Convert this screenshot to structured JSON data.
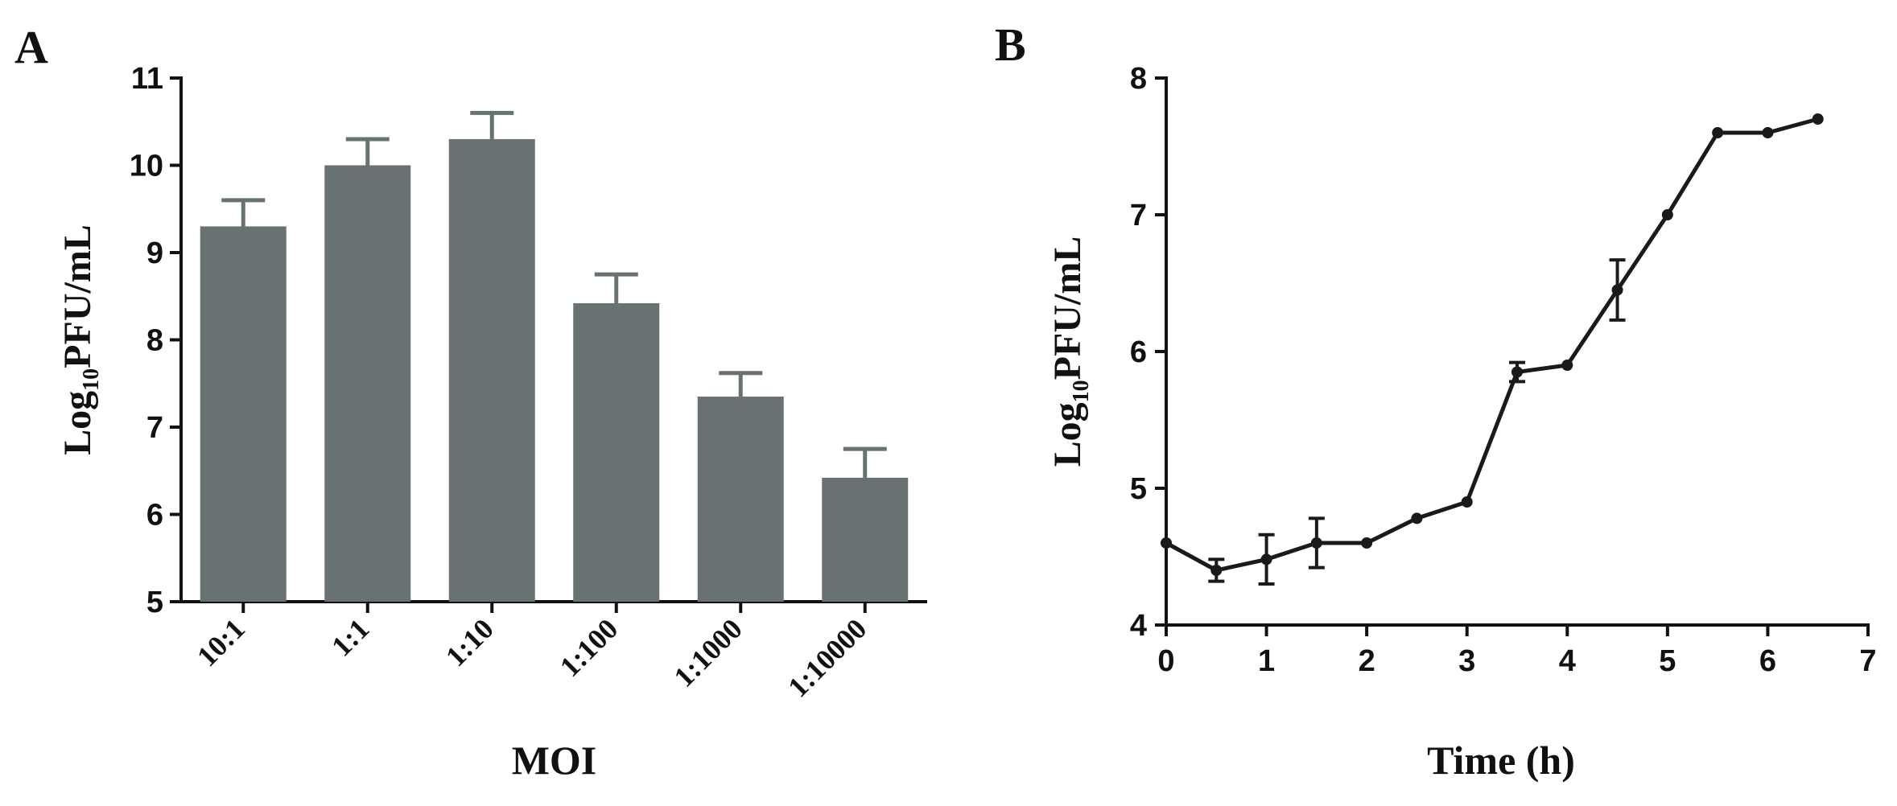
{
  "figure": {
    "panel_a_letter": "A",
    "panel_b_letter": "B"
  },
  "chart_data": [
    {
      "type": "bar",
      "panel": "A",
      "xlabel": "MOI",
      "ylabel_main": "Log",
      "ylabel_sub": "10",
      "ylabel_rest": "PFU/mL",
      "ylim": [
        5,
        11
      ],
      "yticks": [
        5,
        6,
        7,
        8,
        9,
        10,
        11
      ],
      "categories": [
        "10:1",
        "1:1",
        "1:10",
        "1:100",
        "1:1000",
        "1:10000"
      ],
      "values": [
        9.3,
        10.0,
        10.3,
        8.42,
        7.35,
        6.42
      ],
      "errors": [
        0.3,
        0.3,
        0.3,
        0.33,
        0.27,
        0.33
      ],
      "bar_color": "#687273",
      "grid": false
    },
    {
      "type": "line",
      "panel": "B",
      "xlabel": "Time (h)",
      "ylabel_main": "Log",
      "ylabel_sub": "10",
      "ylabel_rest": "PFU/mL",
      "xlim": [
        0,
        7
      ],
      "ylim": [
        4,
        8
      ],
      "xticks": [
        0,
        1,
        2,
        3,
        4,
        5,
        6,
        7
      ],
      "yticks": [
        4,
        5,
        6,
        7,
        8
      ],
      "x": [
        0,
        0.5,
        1,
        1.5,
        2,
        2.5,
        3,
        3.5,
        4,
        4.5,
        5,
        5.5,
        6,
        6.5
      ],
      "y": [
        4.6,
        4.4,
        4.48,
        4.6,
        4.6,
        4.78,
        4.9,
        5.85,
        5.9,
        6.45,
        7.0,
        7.6,
        7.6,
        7.7
      ],
      "errors": [
        0,
        0.08,
        0.18,
        0.18,
        0,
        0,
        0,
        0.07,
        0,
        0.22,
        0,
        0,
        0,
        0
      ],
      "line_color": "#1a1a1a",
      "grid": false
    }
  ]
}
